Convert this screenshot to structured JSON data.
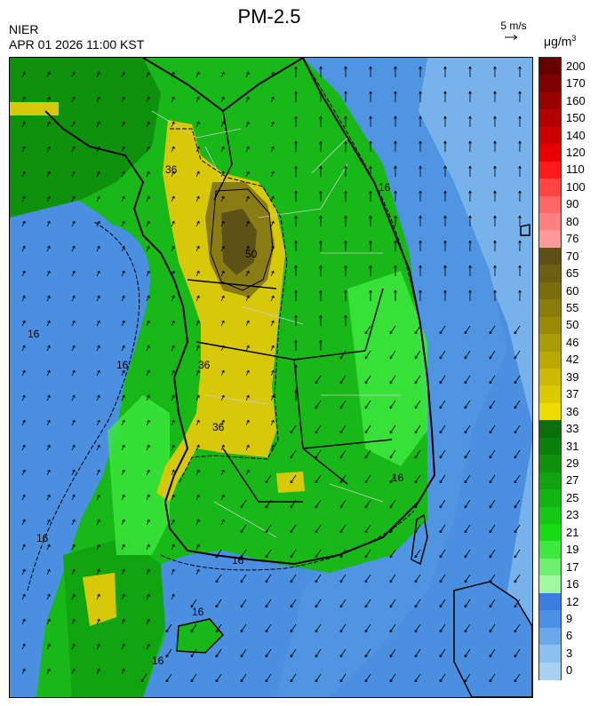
{
  "header": {
    "title": "PM-2.5",
    "org": "NIER",
    "timestamp": "APR 01 2026 11:00 KST",
    "wind_reference": "5 m/s",
    "unit": "μg/m",
    "unit_sup": "3"
  },
  "colors": {
    "sea": "#4a8fe0",
    "sea_east": "#7db6eb",
    "land_green": "#17b817",
    "land_dark_green": "#0a8c0a",
    "land_light_green": "#66e066",
    "yellow": "#d8c80a",
    "olive": "#8a7c14",
    "dark_olive": "#5c5218"
  },
  "colorbar": {
    "labels": [
      "200",
      "170",
      "160",
      "150",
      "140",
      "120",
      "110",
      "100",
      "90",
      "80",
      "76",
      "70",
      "65",
      "60",
      "55",
      "50",
      "46",
      "42",
      "39",
      "37",
      "36",
      "33",
      "31",
      "29",
      "27",
      "25",
      "23",
      "21",
      "19",
      "17",
      "16",
      "12",
      "9",
      "6",
      "3",
      "0"
    ],
    "colors": [
      "#660000",
      "#7f0000",
      "#990000",
      "#b30000",
      "#cc0000",
      "#e60000",
      "#ff1a1a",
      "#ff4444",
      "#ff6666",
      "#ff8080",
      "#ff9999",
      "#5c5218",
      "#6b5f12",
      "#7a6d0e",
      "#8a7c0a",
      "#9a8a08",
      "#aa9a06",
      "#bbaa04",
      "#ccbb02",
      "#dcca00",
      "#eedd00",
      "#0a6e0a",
      "#0c800c",
      "#0e920e",
      "#10a410",
      "#12b612",
      "#14c814",
      "#16da16",
      "#3ee83e",
      "#70f070",
      "#a0f8a0",
      "#3a7ee0",
      "#4a90e6",
      "#6aa8ea",
      "#8cc0ee",
      "#a8d0f0"
    ]
  },
  "contour_labels": [
    "16",
    "16",
    "16",
    "16",
    "16",
    "16",
    "16",
    "16",
    "36",
    "36",
    "36",
    "50"
  ],
  "wind_field": {
    "direction_north": "toward north",
    "direction_south": "toward south-west"
  }
}
